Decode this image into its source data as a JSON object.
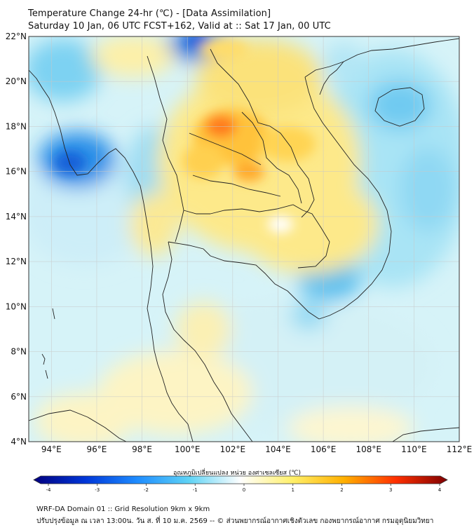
{
  "header": {
    "title_line1": "Temperature Change 24-hr (℃) - [Data Assimilation]",
    "title_line2": "Saturday 10 Jan, 06 UTC FCST+162, Valid at :: Sat 17 Jan, 00 UTC"
  },
  "map": {
    "lat_labels": [
      "22°N",
      "20°N",
      "18°N",
      "16°N",
      "14°N",
      "12°N",
      "10°N",
      "8°N",
      "6°N",
      "4°N"
    ],
    "lon_labels": [
      "94°E",
      "96°E",
      "98°E",
      "100°E",
      "102°E",
      "104°E",
      "106°E",
      "108°E",
      "110°E",
      "112°E"
    ],
    "lat_range": [
      4,
      22
    ],
    "lon_range": [
      93,
      112
    ],
    "grid": true
  },
  "colorbar": {
    "title": "อุณหภูมิเปลี่ยนแปลง หน่วย องศาเซลเซียส (℃)",
    "range": [
      -4,
      4
    ],
    "tick_labels": [
      "-4",
      "-3",
      "-2",
      "-1",
      "0",
      "1",
      "2",
      "3",
      "4"
    ],
    "colors": [
      "#00007f",
      "#0036d8",
      "#1e8cff",
      "#5fd3f5",
      "#ffffff",
      "#fff06a",
      "#ffb000",
      "#ff3000",
      "#7f0000"
    ]
  },
  "footer": {
    "line1": "WRF-DA Domain 01 :: Grid Resolution 9km x 9km",
    "line2": "ปรับปรุงข้อมูล ณ เวลา 13:00น. วัน ส. ที่ 10 ม.ค. 2569 -- © ส่วนพยากรณ์อากาศเชิงตัวเลข กองพยากรณ์อากาศ กรมอุตุนิยมวิทยา"
  }
}
